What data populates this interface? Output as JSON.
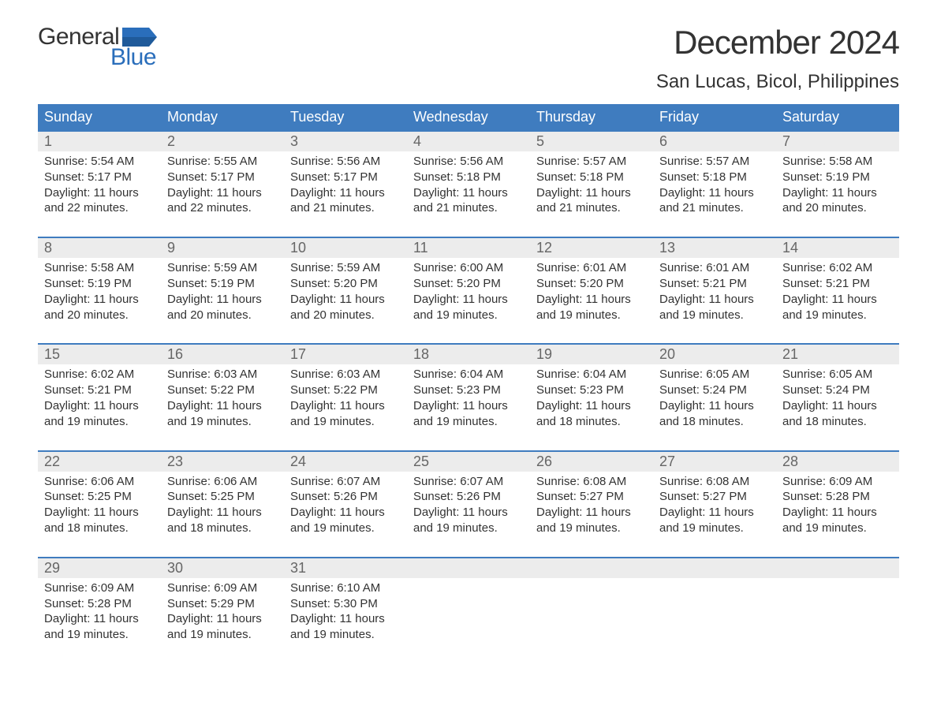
{
  "logo": {
    "general": "General",
    "blue": "Blue",
    "flag_color": "#2a6ebb"
  },
  "title": "December 2024",
  "location": "San Lucas, Bicol, Philippines",
  "colors": {
    "header_bg": "#3f7cbf",
    "header_text": "#ffffff",
    "daynum_bg": "#ececec",
    "daynum_text": "#666666",
    "body_text": "#333333",
    "border": "#3f7cbf",
    "page_bg": "#ffffff"
  },
  "days_of_week": [
    "Sunday",
    "Monday",
    "Tuesday",
    "Wednesday",
    "Thursday",
    "Friday",
    "Saturday"
  ],
  "weeks": [
    [
      {
        "n": "1",
        "sunrise": "Sunrise: 5:54 AM",
        "sunset": "Sunset: 5:17 PM",
        "day1": "Daylight: 11 hours",
        "day2": "and 22 minutes."
      },
      {
        "n": "2",
        "sunrise": "Sunrise: 5:55 AM",
        "sunset": "Sunset: 5:17 PM",
        "day1": "Daylight: 11 hours",
        "day2": "and 22 minutes."
      },
      {
        "n": "3",
        "sunrise": "Sunrise: 5:56 AM",
        "sunset": "Sunset: 5:17 PM",
        "day1": "Daylight: 11 hours",
        "day2": "and 21 minutes."
      },
      {
        "n": "4",
        "sunrise": "Sunrise: 5:56 AM",
        "sunset": "Sunset: 5:18 PM",
        "day1": "Daylight: 11 hours",
        "day2": "and 21 minutes."
      },
      {
        "n": "5",
        "sunrise": "Sunrise: 5:57 AM",
        "sunset": "Sunset: 5:18 PM",
        "day1": "Daylight: 11 hours",
        "day2": "and 21 minutes."
      },
      {
        "n": "6",
        "sunrise": "Sunrise: 5:57 AM",
        "sunset": "Sunset: 5:18 PM",
        "day1": "Daylight: 11 hours",
        "day2": "and 21 minutes."
      },
      {
        "n": "7",
        "sunrise": "Sunrise: 5:58 AM",
        "sunset": "Sunset: 5:19 PM",
        "day1": "Daylight: 11 hours",
        "day2": "and 20 minutes."
      }
    ],
    [
      {
        "n": "8",
        "sunrise": "Sunrise: 5:58 AM",
        "sunset": "Sunset: 5:19 PM",
        "day1": "Daylight: 11 hours",
        "day2": "and 20 minutes."
      },
      {
        "n": "9",
        "sunrise": "Sunrise: 5:59 AM",
        "sunset": "Sunset: 5:19 PM",
        "day1": "Daylight: 11 hours",
        "day2": "and 20 minutes."
      },
      {
        "n": "10",
        "sunrise": "Sunrise: 5:59 AM",
        "sunset": "Sunset: 5:20 PM",
        "day1": "Daylight: 11 hours",
        "day2": "and 20 minutes."
      },
      {
        "n": "11",
        "sunrise": "Sunrise: 6:00 AM",
        "sunset": "Sunset: 5:20 PM",
        "day1": "Daylight: 11 hours",
        "day2": "and 19 minutes."
      },
      {
        "n": "12",
        "sunrise": "Sunrise: 6:01 AM",
        "sunset": "Sunset: 5:20 PM",
        "day1": "Daylight: 11 hours",
        "day2": "and 19 minutes."
      },
      {
        "n": "13",
        "sunrise": "Sunrise: 6:01 AM",
        "sunset": "Sunset: 5:21 PM",
        "day1": "Daylight: 11 hours",
        "day2": "and 19 minutes."
      },
      {
        "n": "14",
        "sunrise": "Sunrise: 6:02 AM",
        "sunset": "Sunset: 5:21 PM",
        "day1": "Daylight: 11 hours",
        "day2": "and 19 minutes."
      }
    ],
    [
      {
        "n": "15",
        "sunrise": "Sunrise: 6:02 AM",
        "sunset": "Sunset: 5:21 PM",
        "day1": "Daylight: 11 hours",
        "day2": "and 19 minutes."
      },
      {
        "n": "16",
        "sunrise": "Sunrise: 6:03 AM",
        "sunset": "Sunset: 5:22 PM",
        "day1": "Daylight: 11 hours",
        "day2": "and 19 minutes."
      },
      {
        "n": "17",
        "sunrise": "Sunrise: 6:03 AM",
        "sunset": "Sunset: 5:22 PM",
        "day1": "Daylight: 11 hours",
        "day2": "and 19 minutes."
      },
      {
        "n": "18",
        "sunrise": "Sunrise: 6:04 AM",
        "sunset": "Sunset: 5:23 PM",
        "day1": "Daylight: 11 hours",
        "day2": "and 19 minutes."
      },
      {
        "n": "19",
        "sunrise": "Sunrise: 6:04 AM",
        "sunset": "Sunset: 5:23 PM",
        "day1": "Daylight: 11 hours",
        "day2": "and 18 minutes."
      },
      {
        "n": "20",
        "sunrise": "Sunrise: 6:05 AM",
        "sunset": "Sunset: 5:24 PM",
        "day1": "Daylight: 11 hours",
        "day2": "and 18 minutes."
      },
      {
        "n": "21",
        "sunrise": "Sunrise: 6:05 AM",
        "sunset": "Sunset: 5:24 PM",
        "day1": "Daylight: 11 hours",
        "day2": "and 18 minutes."
      }
    ],
    [
      {
        "n": "22",
        "sunrise": "Sunrise: 6:06 AM",
        "sunset": "Sunset: 5:25 PM",
        "day1": "Daylight: 11 hours",
        "day2": "and 18 minutes."
      },
      {
        "n": "23",
        "sunrise": "Sunrise: 6:06 AM",
        "sunset": "Sunset: 5:25 PM",
        "day1": "Daylight: 11 hours",
        "day2": "and 18 minutes."
      },
      {
        "n": "24",
        "sunrise": "Sunrise: 6:07 AM",
        "sunset": "Sunset: 5:26 PM",
        "day1": "Daylight: 11 hours",
        "day2": "and 19 minutes."
      },
      {
        "n": "25",
        "sunrise": "Sunrise: 6:07 AM",
        "sunset": "Sunset: 5:26 PM",
        "day1": "Daylight: 11 hours",
        "day2": "and 19 minutes."
      },
      {
        "n": "26",
        "sunrise": "Sunrise: 6:08 AM",
        "sunset": "Sunset: 5:27 PM",
        "day1": "Daylight: 11 hours",
        "day2": "and 19 minutes."
      },
      {
        "n": "27",
        "sunrise": "Sunrise: 6:08 AM",
        "sunset": "Sunset: 5:27 PM",
        "day1": "Daylight: 11 hours",
        "day2": "and 19 minutes."
      },
      {
        "n": "28",
        "sunrise": "Sunrise: 6:09 AM",
        "sunset": "Sunset: 5:28 PM",
        "day1": "Daylight: 11 hours",
        "day2": "and 19 minutes."
      }
    ],
    [
      {
        "n": "29",
        "sunrise": "Sunrise: 6:09 AM",
        "sunset": "Sunset: 5:28 PM",
        "day1": "Daylight: 11 hours",
        "day2": "and 19 minutes."
      },
      {
        "n": "30",
        "sunrise": "Sunrise: 6:09 AM",
        "sunset": "Sunset: 5:29 PM",
        "day1": "Daylight: 11 hours",
        "day2": "and 19 minutes."
      },
      {
        "n": "31",
        "sunrise": "Sunrise: 6:10 AM",
        "sunset": "Sunset: 5:30 PM",
        "day1": "Daylight: 11 hours",
        "day2": "and 19 minutes."
      },
      null,
      null,
      null,
      null
    ]
  ]
}
